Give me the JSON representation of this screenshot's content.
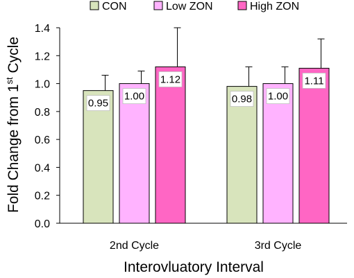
{
  "chart_data": {
    "type": "bar",
    "categories": [
      "2nd Cycle",
      "3rd Cycle"
    ],
    "series": [
      {
        "name": "CON",
        "color": "#d8e4bc",
        "values": [
          0.95,
          0.98
        ],
        "error_upper": [
          0.11,
          0.14
        ],
        "labels": [
          "0.95",
          "0.98"
        ]
      },
      {
        "name": "Low ZON",
        "color": "#ffb3ff",
        "values": [
          1.0,
          1.0
        ],
        "error_upper": [
          0.09,
          0.12
        ],
        "labels": [
          "1.00",
          "1.00"
        ]
      },
      {
        "name": "High ZON",
        "color": "#ff66c4",
        "values": [
          1.12,
          1.11
        ],
        "error_upper": [
          0.28,
          0.21
        ],
        "labels": [
          "1.12",
          "1.11"
        ]
      }
    ],
    "ylim": [
      0,
      1.4
    ],
    "yticks": [
      "0.0",
      "0.2",
      "0.4",
      "0.6",
      "0.8",
      "1.0",
      "1.2",
      "1.4"
    ],
    "xlabel": "Interovluatory Interval",
    "ylabel_main": "Fold Change from 1",
    "ylabel_sup": "st",
    "ylabel_tail": " Cycle",
    "grid": false,
    "legend_position": "top",
    "error_color": "#000000"
  }
}
